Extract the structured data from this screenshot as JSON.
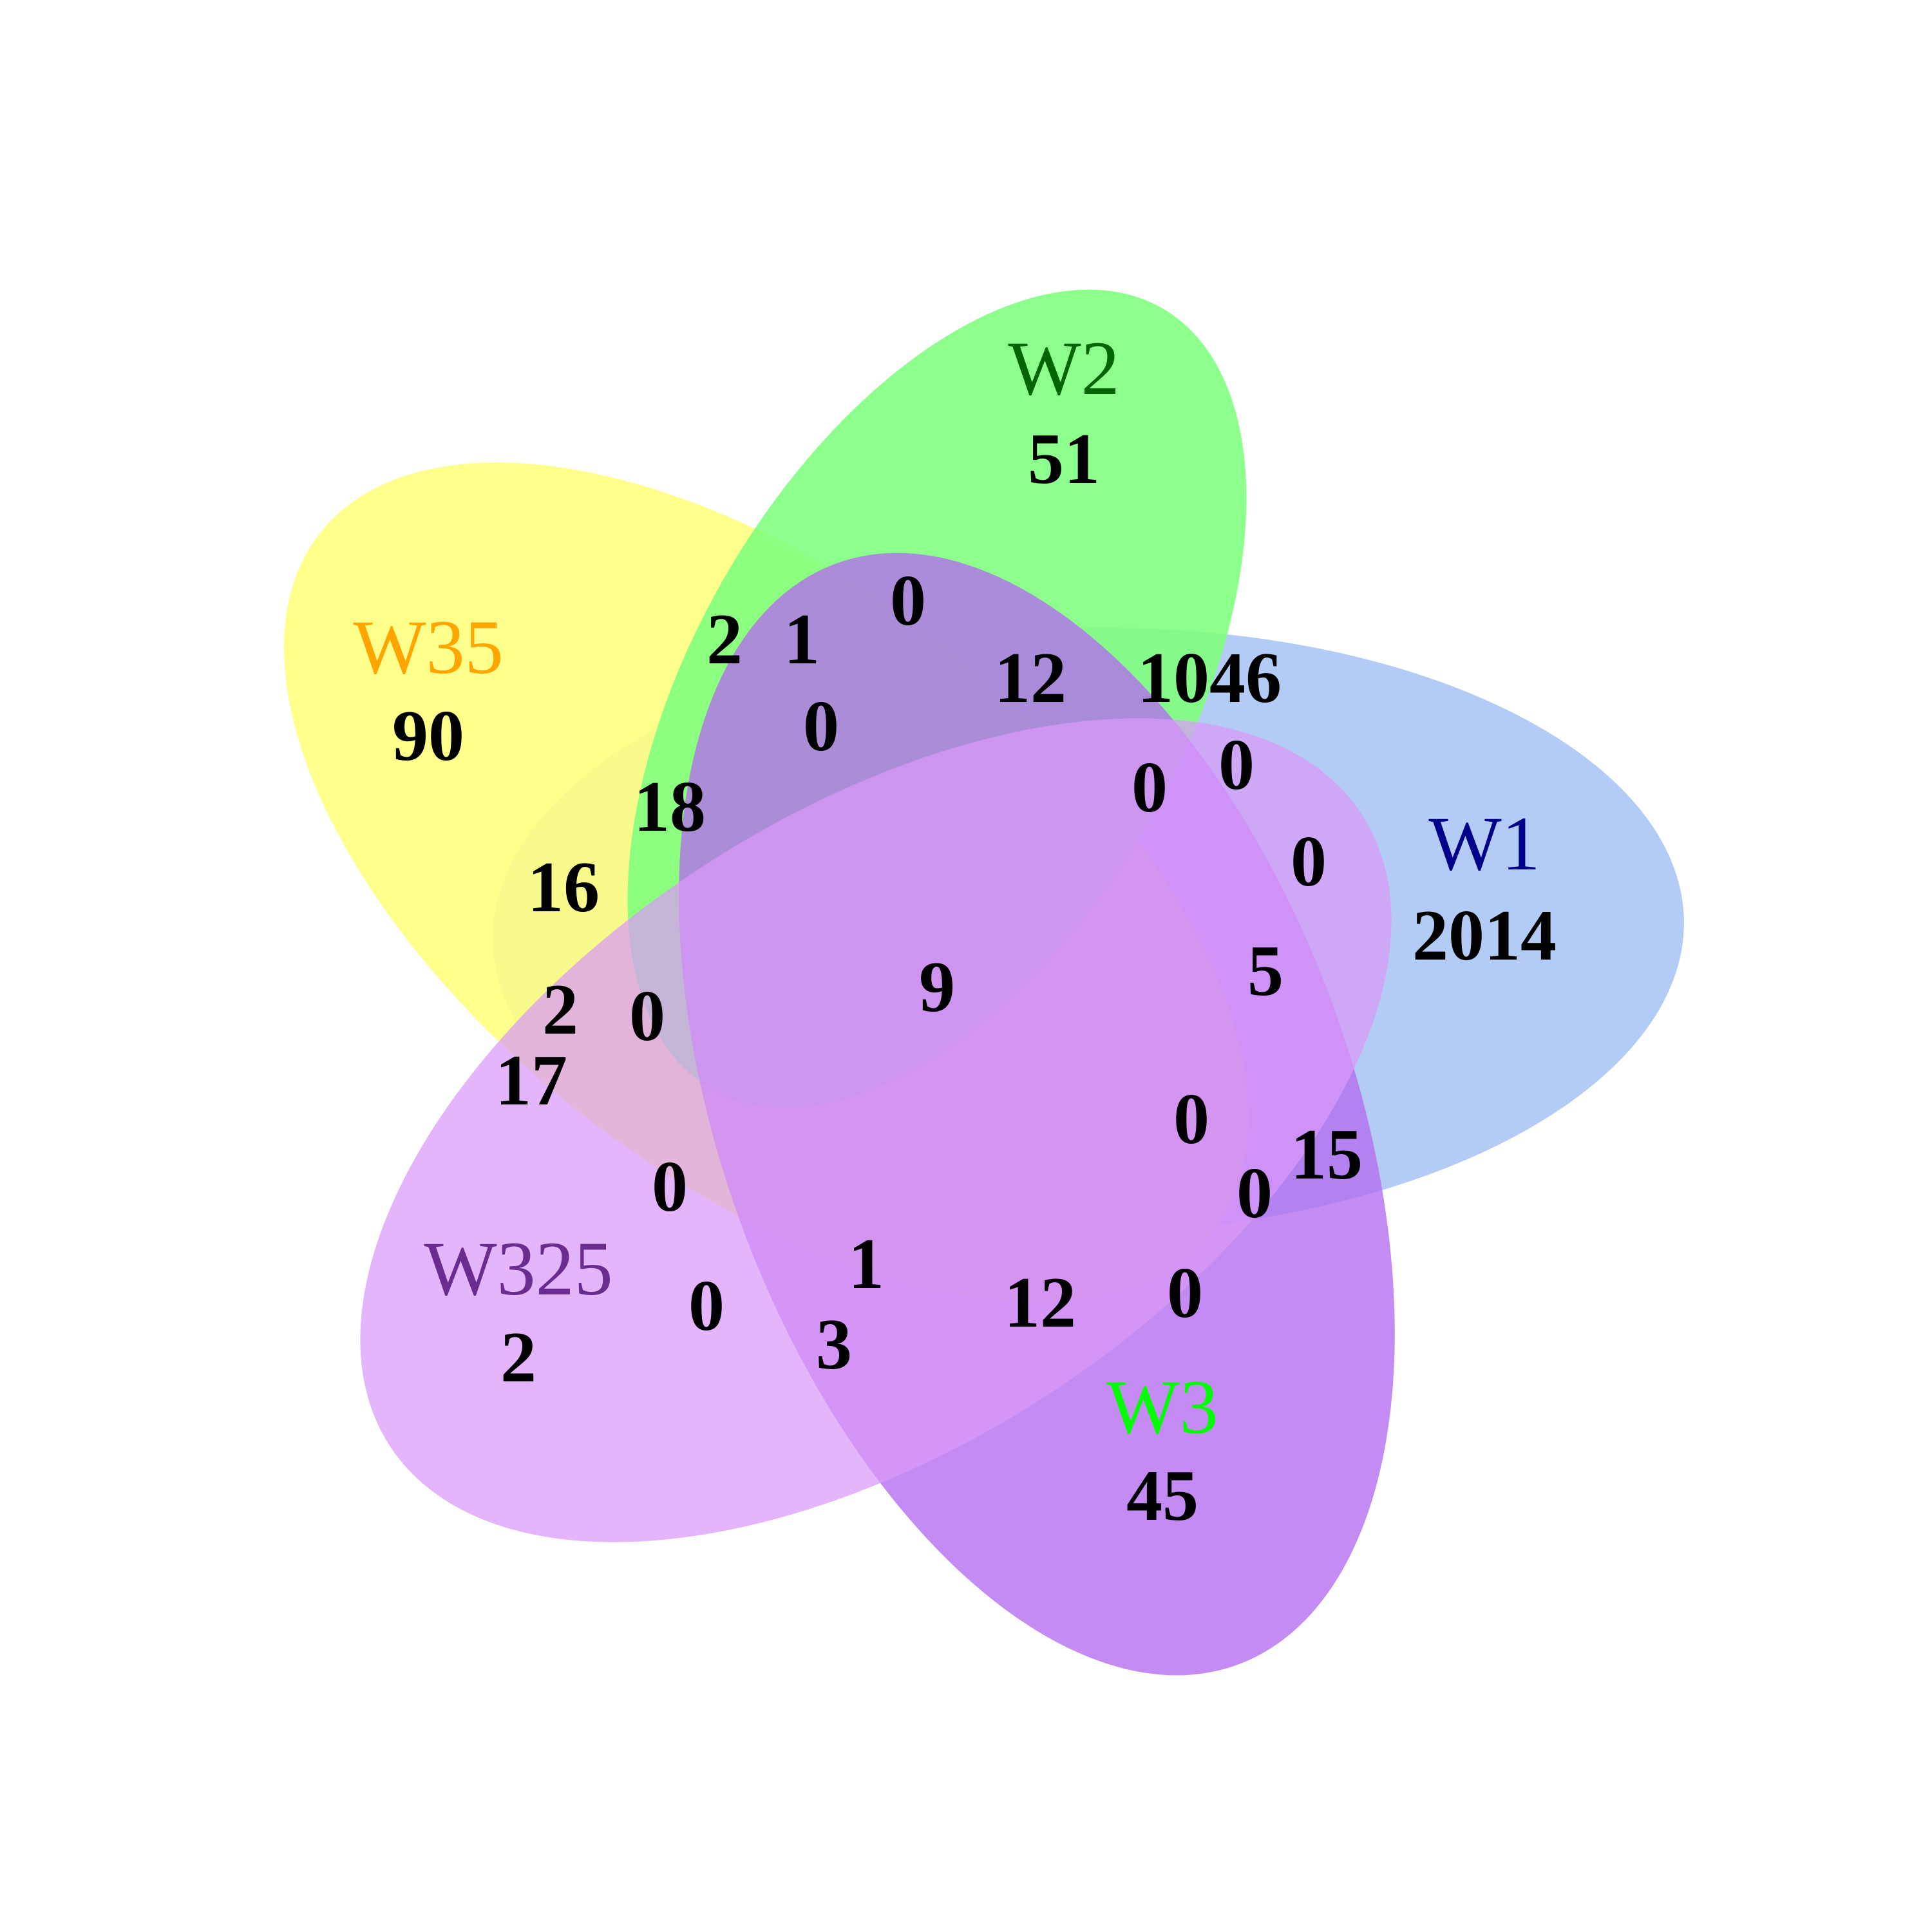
{
  "sets": [
    {
      "id": "W2",
      "label": "W2",
      "total": "51",
      "color": "#7FFF7F",
      "label_color": "#006400"
    },
    {
      "id": "W35",
      "label": "W35",
      "total": "90",
      "color": "#FFFF80",
      "label_color": "#FFA500"
    },
    {
      "id": "W1",
      "label": "W1",
      "total": "2014",
      "color": "#B0C8F4",
      "label_color": "#00008B"
    },
    {
      "id": "W325",
      "label": "W325",
      "total": "2",
      "color": "#DA98F8",
      "label_color": "#6A2D8F"
    },
    {
      "id": "W3",
      "label": "W3",
      "total": "45",
      "color": "#B46BF0",
      "label_color": "#00FF00"
    }
  ],
  "regions": [
    "0",
    "2",
    "1",
    "12",
    "1046",
    "0",
    "18",
    "0",
    "0",
    "16",
    "0",
    "5",
    "9",
    "2",
    "0",
    "17",
    "0",
    "15",
    "0",
    "0",
    "1",
    "0",
    "12",
    "0",
    "3"
  ]
}
